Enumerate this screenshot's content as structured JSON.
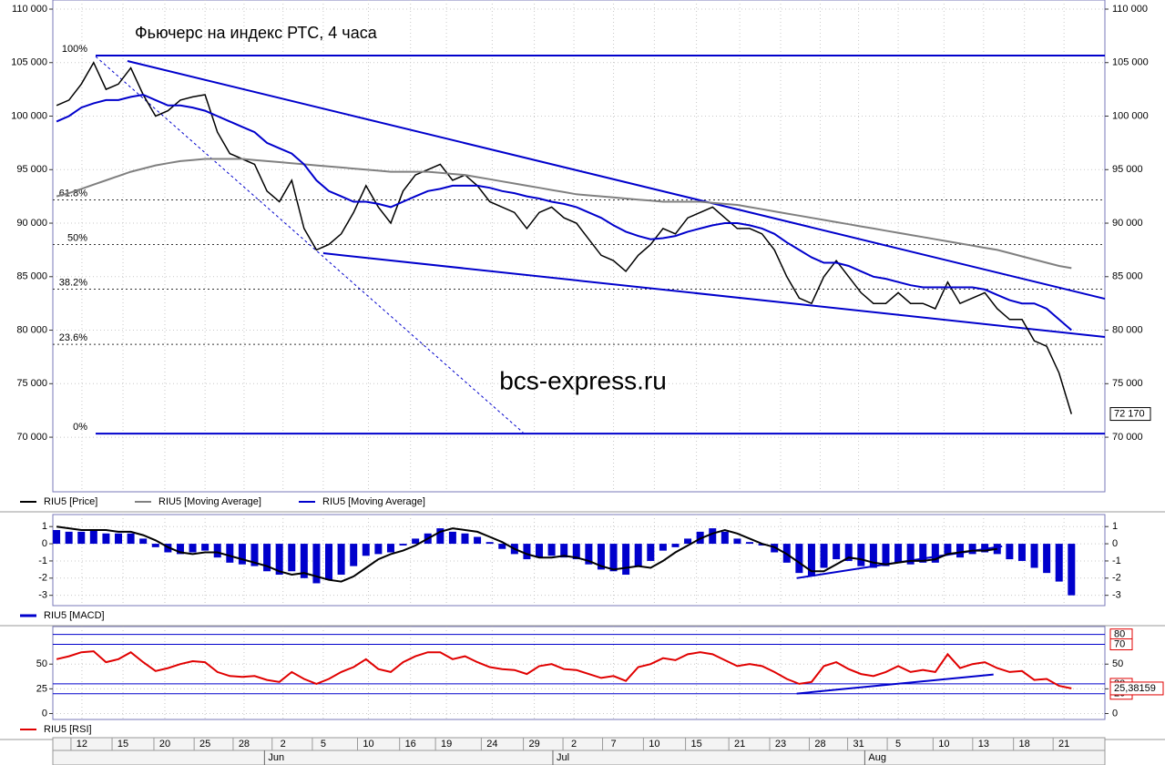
{
  "x_axis": {
    "x": [
      0,
      1,
      2,
      3,
      4,
      5,
      6,
      7,
      8,
      9,
      10,
      11,
      12,
      13,
      14,
      15,
      16,
      17,
      18,
      19,
      20,
      21,
      22,
      23,
      24,
      25,
      26,
      27,
      28,
      29,
      30,
      31,
      32,
      33,
      34,
      35,
      36,
      37,
      38,
      39,
      40,
      41,
      42,
      43,
      44,
      45,
      46,
      47,
      48,
      49,
      50,
      51,
      52,
      53,
      54,
      55,
      56,
      57,
      58,
      59,
      60,
      61,
      62,
      63,
      64,
      65,
      66,
      67,
      68,
      69,
      70,
      71,
      72,
      73,
      74,
      75,
      76,
      77,
      78,
      79,
      80,
      81,
      82
    ],
    "xlim": [
      -0.3,
      84.7
    ],
    "xticks": [
      {
        "value": 2.05,
        "label": "12"
      },
      {
        "value": 5.37,
        "label": "15"
      },
      {
        "value": 8.75,
        "label": "20"
      },
      {
        "value": 12.0,
        "label": "25"
      },
      {
        "value": 15.15,
        "label": "28"
      },
      {
        "value": 18.3,
        "label": "2"
      },
      {
        "value": 21.55,
        "label": "5"
      },
      {
        "value": 25.2,
        "label": "10"
      },
      {
        "value": 28.6,
        "label": "16"
      },
      {
        "value": 31.5,
        "label": "19"
      },
      {
        "value": 35.2,
        "label": "24"
      },
      {
        "value": 38.6,
        "label": "29"
      },
      {
        "value": 41.8,
        "label": "2"
      },
      {
        "value": 45.0,
        "label": "7"
      },
      {
        "value": 48.3,
        "label": "10"
      },
      {
        "value": 51.7,
        "label": "15"
      },
      {
        "value": 55.2,
        "label": "21"
      },
      {
        "value": 58.5,
        "label": "23"
      },
      {
        "value": 61.7,
        "label": "28"
      },
      {
        "value": 64.8,
        "label": "31"
      },
      {
        "value": 68.0,
        "label": "5"
      },
      {
        "value": 71.7,
        "label": "10"
      },
      {
        "value": 74.9,
        "label": "13"
      },
      {
        "value": 78.2,
        "label": "18"
      },
      {
        "value": 81.4,
        "label": "21"
      }
    ],
    "month_ticks": [
      {
        "value": 16.8,
        "label": "Jun"
      },
      {
        "value": 40.1,
        "label": "Jul"
      },
      {
        "value": 65.3,
        "label": "Aug"
      }
    ]
  },
  "chart_data": [
    {
      "type": "line",
      "title": "Фьючерс на индекс РТС, 4 часа",
      "watermark": "bcs-express.ru",
      "ylim": [
        64900,
        110850
      ],
      "grid": true,
      "yticks": [
        {
          "value": 70000,
          "label": "70 000"
        },
        {
          "value": 75000,
          "label": "75 000"
        },
        {
          "value": 80000,
          "label": "80 000"
        },
        {
          "value": 85000,
          "label": "85 000"
        },
        {
          "value": 90000,
          "label": "90 000"
        },
        {
          "value": 95000,
          "label": "95 000"
        },
        {
          "value": 100000,
          "label": "100 000"
        },
        {
          "value": 105000,
          "label": "105 000"
        },
        {
          "value": 110000,
          "label": "110 000"
        }
      ],
      "series": [
        {
          "name": "RIU5 [Price]",
          "color": "#000000",
          "kind": "line",
          "values": [
            101000,
            101500,
            103000,
            105000,
            102500,
            103000,
            104500,
            102000,
            100000,
            100500,
            101500,
            101800,
            102000,
            98500,
            96500,
            96000,
            95500,
            93000,
            92000,
            94000,
            89500,
            87500,
            88000,
            89000,
            91000,
            93500,
            91500,
            90000,
            93000,
            94500,
            95000,
            95500,
            94000,
            94500,
            93500,
            92000,
            91500,
            91000,
            89500,
            91000,
            91500,
            90500,
            90000,
            88500,
            87000,
            86500,
            85500,
            87000,
            88000,
            89500,
            89000,
            90500,
            91000,
            91500,
            90500,
            89500,
            89500,
            89000,
            87500,
            85000,
            83000,
            82500,
            85000,
            86500,
            85000,
            83500,
            82500,
            82500,
            83500,
            82500,
            82500,
            82000,
            84500,
            82500,
            83000,
            83500,
            82000,
            81000,
            81000,
            79000,
            78500,
            76000,
            72170
          ]
        },
        {
          "name": "RIU5 [Moving Average]",
          "color": "#808080",
          "kind": "line",
          "values": [
            92500,
            92800,
            93200,
            93600,
            94000,
            94400,
            94800,
            95100,
            95400,
            95600,
            95800,
            95900,
            96000,
            96000,
            96000,
            96000,
            95900,
            95800,
            95700,
            95600,
            95500,
            95400,
            95300,
            95200,
            95100,
            95000,
            94900,
            94800,
            94800,
            94800,
            94800,
            94700,
            94600,
            94500,
            94300,
            94100,
            93900,
            93700,
            93500,
            93300,
            93100,
            92900,
            92700,
            92600,
            92500,
            92400,
            92300,
            92200,
            92100,
            92000,
            92000,
            92000,
            92000,
            91900,
            91800,
            91700,
            91500,
            91300,
            91100,
            90900,
            90700,
            90500,
            90300,
            90100,
            89900,
            89700,
            89500,
            89300,
            89100,
            88900,
            88700,
            88500,
            88300,
            88100,
            87900,
            87700,
            87500,
            87200,
            86900,
            86600,
            86300,
            86000,
            85800
          ]
        },
        {
          "name": "RIU5 [Moving Average]",
          "color": "#0000cc",
          "kind": "line",
          "values": [
            99500,
            100000,
            100800,
            101200,
            101500,
            101500,
            101800,
            102000,
            101500,
            101000,
            101000,
            100800,
            100500,
            100000,
            99500,
            99000,
            98500,
            97500,
            97000,
            96500,
            95500,
            94000,
            93000,
            92500,
            92000,
            92000,
            91800,
            91500,
            92000,
            92500,
            93000,
            93200,
            93500,
            93500,
            93500,
            93300,
            93000,
            92800,
            92500,
            92300,
            92000,
            91800,
            91500,
            91000,
            90500,
            89800,
            89200,
            88800,
            88500,
            88600,
            88800,
            89200,
            89500,
            89800,
            90000,
            90000,
            89800,
            89500,
            89000,
            88200,
            87500,
            86800,
            86300,
            86300,
            86000,
            85500,
            85000,
            84800,
            84500,
            84200,
            84000,
            84000,
            84000,
            84000,
            84000,
            83800,
            83300,
            82800,
            82500,
            82500,
            82000,
            81000,
            80000
          ]
        }
      ],
      "last_value": {
        "value": 72170,
        "label": "72 170"
      },
      "levels": [
        {
          "value": 105660,
          "label": "100%",
          "line": "solid",
          "x_start": 3.16
        },
        {
          "value": 92168,
          "label": "61.8%",
          "line": "dotted"
        },
        {
          "value": 88000,
          "label": "50%",
          "line": "dotted"
        },
        {
          "value": 83832,
          "label": "38.2%",
          "line": "dotted"
        },
        {
          "value": 78676,
          "label": "23.6%",
          "line": "dotted"
        },
        {
          "value": 70340,
          "label": "0%",
          "line": "solid",
          "x_start": 3.16
        }
      ],
      "trendlines": [
        {
          "x": [
            5.73,
            84.7
          ],
          "values": [
            105149,
            82936
          ],
          "color": "#0000cc",
          "style": "solid"
        },
        {
          "x": [
            21.55,
            84.7
          ],
          "values": [
            87191,
            79362
          ],
          "color": "#0000cc",
          "style": "solid"
        },
        {
          "x": [
            3.16,
            37.7
          ],
          "values": [
            105574,
            70426
          ],
          "color": "#0000cc",
          "style": "dashed"
        }
      ]
    },
    {
      "type": "bar",
      "name": "RIU5 [MACD]",
      "color": "#0000cc",
      "ylim": [
        -3.6,
        1.7
      ],
      "yticks": [
        1,
        0,
        -1,
        -2,
        -3
      ],
      "grid": true,
      "series": [
        {
          "color": "#0000cc",
          "kind": "bar",
          "values": [
            0.8,
            0.7,
            0.7,
            0.8,
            0.6,
            0.6,
            0.6,
            0.3,
            -0.2,
            -0.5,
            -0.6,
            -0.5,
            -0.4,
            -0.8,
            -1.1,
            -1.2,
            -1.3,
            -1.6,
            -1.8,
            -1.6,
            -2.0,
            -2.3,
            -2.1,
            -1.8,
            -1.3,
            -0.7,
            -0.6,
            -0.5,
            -0.1,
            0.3,
            0.6,
            0.9,
            0.7,
            0.6,
            0.4,
            0.1,
            -0.3,
            -0.6,
            -0.9,
            -0.8,
            -0.7,
            -0.8,
            -0.9,
            -1.2,
            -1.5,
            -1.6,
            -1.8,
            -1.3,
            -1.0,
            -0.4,
            -0.2,
            0.3,
            0.7,
            0.9,
            0.7,
            0.3,
            0.1,
            -0.1,
            -0.5,
            -1.1,
            -1.7,
            -1.9,
            -1.4,
            -0.9,
            -1.0,
            -1.3,
            -1.4,
            -1.3,
            -1.1,
            -1.2,
            -1.1,
            -1.1,
            -0.6,
            -0.8,
            -0.6,
            -0.5,
            -0.6,
            -0.9,
            -1.0,
            -1.4,
            -1.7,
            -2.2,
            -3.0
          ]
        },
        {
          "color": "#000000",
          "kind": "line",
          "values": [
            1.0,
            0.9,
            0.8,
            0.8,
            0.8,
            0.7,
            0.7,
            0.5,
            0.2,
            -0.2,
            -0.5,
            -0.6,
            -0.5,
            -0.5,
            -0.7,
            -0.9,
            -1.1,
            -1.3,
            -1.6,
            -1.8,
            -1.7,
            -1.9,
            -2.1,
            -2.2,
            -1.9,
            -1.4,
            -0.9,
            -0.6,
            -0.4,
            -0.1,
            0.3,
            0.7,
            0.9,
            0.8,
            0.7,
            0.4,
            0.1,
            -0.3,
            -0.6,
            -0.8,
            -0.8,
            -0.7,
            -0.8,
            -1.0,
            -1.3,
            -1.5,
            -1.4,
            -1.3,
            -1.4,
            -1.0,
            -0.5,
            -0.1,
            0.3,
            0.6,
            0.8,
            0.6,
            0.3,
            0,
            -0.2,
            -0.6,
            -1.1,
            -1.6,
            -1.6,
            -1.2,
            -0.8,
            -0.9,
            -1.1,
            -1.2,
            -1.1,
            -1.0,
            -1.0,
            -0.9,
            -0.6,
            -0.5,
            -0.4,
            -0.4,
            -0.3,
            null,
            null,
            null,
            null,
            null,
            null
          ]
        }
      ],
      "trendlines": [
        {
          "x": [
            59.8,
            76.4
          ],
          "values": [
            -2.0,
            -0.15
          ],
          "color": "#0000cc",
          "style": "solid"
        }
      ]
    },
    {
      "type": "line",
      "ylim": [
        -6,
        88
      ],
      "yticks": [
        0,
        25,
        50
      ],
      "grid": true,
      "levels_color": "#0000cc",
      "series": [
        {
          "name": "RIU5 [RSI]",
          "color": "#e00000",
          "kind": "line",
          "values": [
            55,
            58,
            62,
            63,
            52,
            55,
            62,
            52,
            43,
            46,
            50,
            53,
            52,
            42,
            38,
            37,
            38,
            34,
            32,
            42,
            35,
            30,
            35,
            42,
            47,
            55,
            45,
            42,
            52,
            58,
            62,
            62,
            55,
            58,
            52,
            47,
            45,
            44,
            40,
            48,
            50,
            45,
            44,
            40,
            36,
            38,
            33,
            47,
            50,
            56,
            54,
            60,
            62,
            60,
            54,
            48,
            50,
            48,
            42,
            35,
            30,
            32,
            48,
            52,
            45,
            40,
            38,
            42,
            48,
            42,
            44,
            42,
            60,
            46,
            50,
            52,
            46,
            42,
            43,
            34,
            35,
            28,
            25.38159
          ]
        }
      ],
      "levels": [
        80,
        70,
        30,
        20
      ],
      "last_value": {
        "value": 25.38159,
        "label": "25,38159"
      },
      "trendlines": [
        {
          "x": [
            59.8,
            75.7
          ],
          "values": [
            20.2,
            39.5
          ],
          "color": "#0000cc",
          "style": "solid"
        }
      ]
    }
  ]
}
